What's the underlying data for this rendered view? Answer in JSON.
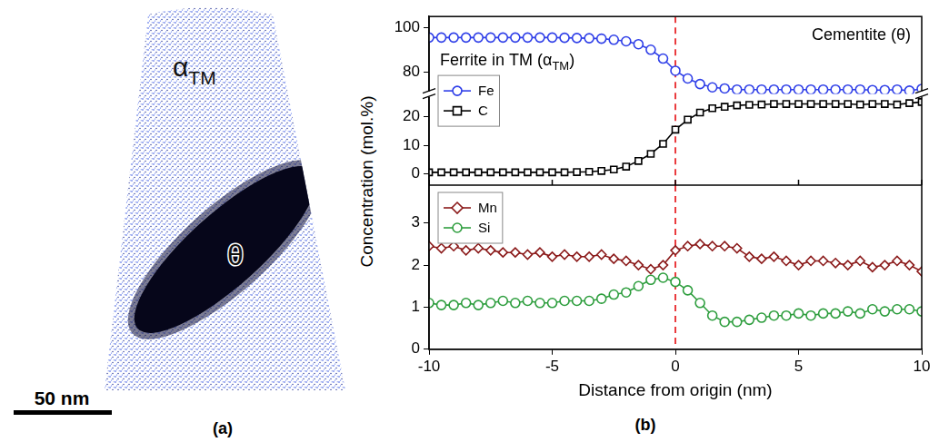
{
  "figure": {
    "panel_labels": [
      "(a)",
      "(b)"
    ],
    "ylabel": "Concentration (mol.%)"
  },
  "panel_a": {
    "labels": [
      "αTM",
      "θ"
    ],
    "scale_bar": "50 nm"
  },
  "chart_data": [
    {
      "type": "line",
      "x": [
        -10,
        -9.5,
        -9,
        -8.5,
        -8,
        -7.5,
        -7,
        -6.5,
        -6,
        -5.5,
        -5,
        -4.5,
        -4,
        -3.5,
        -3,
        -2.5,
        -2,
        -1.5,
        -1,
        -0.5,
        0,
        0.5,
        1,
        1.5,
        2,
        2.5,
        3,
        3.5,
        4,
        4.5,
        5,
        5.5,
        6,
        6.5,
        7,
        7.5,
        8,
        8.5,
        9,
        9.5,
        10
      ],
      "xlim": [
        -10,
        10
      ],
      "xticks": [
        -10,
        -5,
        0,
        5,
        10
      ],
      "ylim": [
        -4,
        28
      ],
      "yticks": [
        0,
        10,
        20
      ],
      "y2lim": [
        70,
        105
      ],
      "y2ticks": [
        80,
        100
      ],
      "tick_labels": "y",
      "series": [
        {
          "name": "Fe",
          "color": "#2f3fe8",
          "marker": "circle",
          "axis": "y2",
          "values": [
            95.5,
            95.5,
            95.5,
            95.5,
            95.5,
            95.5,
            95.5,
            95.5,
            95.5,
            95.5,
            95.5,
            95.4,
            95.3,
            95.2,
            95,
            94.5,
            93.8,
            92.5,
            90,
            86,
            80.5,
            77,
            74.5,
            73,
            72.5,
            72,
            72,
            72,
            72,
            72,
            72,
            72,
            72,
            72,
            72,
            72,
            71.8,
            71.8,
            72,
            71.5,
            72.3
          ]
        },
        {
          "name": "C",
          "color": "#000000",
          "marker": "square",
          "values": [
            0.5,
            0.5,
            0.5,
            0.5,
            0.5,
            0.5,
            0.5,
            0.5,
            0.5,
            0.5,
            0.5,
            0.5,
            0.6,
            0.7,
            1,
            1.5,
            2.5,
            4.5,
            7,
            10.5,
            15.5,
            19,
            21.5,
            23,
            23.5,
            24,
            24.2,
            24.3,
            24.5,
            24.5,
            24.5,
            24.5,
            24.5,
            24.5,
            24.5,
            24.3,
            24.5,
            24.5,
            24.3,
            24.8,
            25.2
          ]
        }
      ],
      "annotations": [
        {
          "text": "Ferrite in TM (αTM)"
        },
        {
          "text": "Cementite (θ)"
        }
      ],
      "vline": {
        "x": 0,
        "color": "#e8262a",
        "line_style": "dashed"
      },
      "legend": "left"
    },
    {
      "type": "line",
      "x": [
        -10,
        -9.5,
        -9,
        -8.5,
        -8,
        -7.5,
        -7,
        -6.5,
        -6,
        -5.5,
        -5,
        -4.5,
        -4,
        -3.5,
        -3,
        -2.5,
        -2,
        -1.5,
        -1,
        -0.5,
        0,
        0.5,
        1,
        1.5,
        2,
        2.5,
        3,
        3.5,
        4,
        4.5,
        5,
        5.5,
        6,
        6.5,
        7,
        7.5,
        8,
        8.5,
        9,
        9.5,
        10
      ],
      "xlim": [
        -10,
        10
      ],
      "xticks": [
        -10,
        -5,
        0,
        5,
        10
      ],
      "xlabel": "Distance from origin (nm)",
      "ylim": [
        0,
        3.9
      ],
      "yticks": [
        0,
        1,
        2,
        3
      ],
      "series": [
        {
          "name": "Mn",
          "color": "#8b1a1a",
          "marker": "diamond",
          "values": [
            2.45,
            2.4,
            2.45,
            2.35,
            2.4,
            2.35,
            2.3,
            2.3,
            2.25,
            2.3,
            2.2,
            2.25,
            2.2,
            2.2,
            2.25,
            2.15,
            2.1,
            2,
            1.9,
            2,
            2.35,
            2.45,
            2.5,
            2.45,
            2.45,
            2.4,
            2.2,
            2.15,
            2.2,
            2.1,
            2,
            2.1,
            2.1,
            2.05,
            2,
            2.1,
            1.95,
            2,
            2.1,
            2,
            1.85
          ]
        },
        {
          "name": "Si",
          "color": "#2e9e3e",
          "marker": "circle",
          "values": [
            1.1,
            1.05,
            1.05,
            1.1,
            1.05,
            1.1,
            1.15,
            1.1,
            1.15,
            1.1,
            1.1,
            1.15,
            1.15,
            1.15,
            1.2,
            1.3,
            1.35,
            1.5,
            1.65,
            1.7,
            1.6,
            1.4,
            1.1,
            0.8,
            0.65,
            0.65,
            0.7,
            0.75,
            0.8,
            0.8,
            0.85,
            0.8,
            0.85,
            0.85,
            0.9,
            0.85,
            0.95,
            0.9,
            0.95,
            0.95,
            0.9
          ]
        }
      ],
      "vline": {
        "x": 0,
        "color": "#e8262a",
        "line_style": "dashed"
      },
      "legend": "upper-left"
    }
  ]
}
